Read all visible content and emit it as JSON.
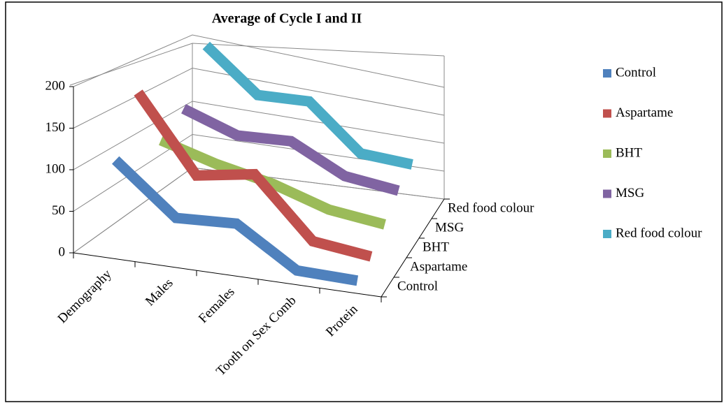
{
  "chart_data": {
    "type": "line3d",
    "title": "Average of Cycle I and II",
    "categories": [
      "Demography",
      "Males",
      "Females",
      "Tooth on Sex Comb",
      "Protein"
    ],
    "series": [
      {
        "name": "Control",
        "color": "#4f81bd",
        "values": [
          110,
          50,
          55,
          5,
          3
        ]
      },
      {
        "name": "Aspartame",
        "color": "#c0504d",
        "values": [
          180,
          85,
          100,
          20,
          10
        ]
      },
      {
        "name": "BHT",
        "color": "#9bbb59",
        "values": [
          100,
          80,
          65,
          40,
          30
        ]
      },
      {
        "name": "MSG",
        "color": "#8064a2",
        "values": [
          125,
          100,
          105,
          65,
          55
        ]
      },
      {
        "name": "Red food colour",
        "color": "#4bacc6",
        "values": [
          200,
          140,
          145,
          75,
          70
        ]
      }
    ],
    "ylim": [
      0,
      200
    ],
    "yticks": [
      0,
      50,
      100,
      150,
      200
    ],
    "grid": true,
    "legend": "right"
  }
}
